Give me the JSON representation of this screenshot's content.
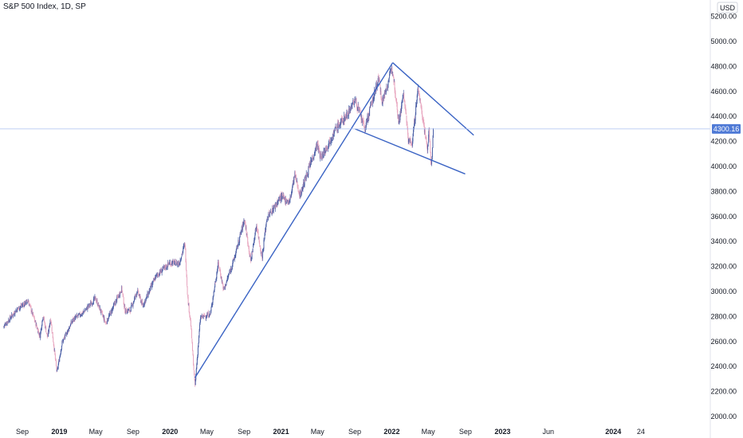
{
  "header": {
    "title": "S&P 500 Index, 1D, SP"
  },
  "currency_label": "USD",
  "price_label": "4300.16",
  "colors": {
    "up": "#4a5fa6",
    "down": "#e8a6bf",
    "trendline": "#3a63c4",
    "price_line": "#a9bff0",
    "price_tag": "#4f7ad6",
    "axis_text": "#131722"
  },
  "chart_data": {
    "type": "candlestick",
    "title": "S&P 500 Index, 1D, SP",
    "ylim": [
      2000,
      5200
    ],
    "y_ticks": [
      "2000.00",
      "2200.00",
      "2400.00",
      "2600.00",
      "2800.00",
      "3000.00",
      "3200.00",
      "3400.00",
      "3600.00",
      "3800.00",
      "4000.00",
      "4200.00",
      "4400.00",
      "4600.00",
      "4800.00",
      "5000.00",
      "5200.00"
    ],
    "x_ticks": [
      {
        "date": "2018-09-01",
        "label": "Sep",
        "bold": false
      },
      {
        "date": "2019-01-01",
        "label": "2019",
        "bold": true
      },
      {
        "date": "2019-05-01",
        "label": "May",
        "bold": false
      },
      {
        "date": "2019-09-01",
        "label": "Sep",
        "bold": false
      },
      {
        "date": "2020-01-01",
        "label": "2020",
        "bold": true
      },
      {
        "date": "2020-05-01",
        "label": "May",
        "bold": false
      },
      {
        "date": "2020-09-01",
        "label": "Sep",
        "bold": false
      },
      {
        "date": "2021-01-01",
        "label": "2021",
        "bold": true
      },
      {
        "date": "2021-05-01",
        "label": "May",
        "bold": false
      },
      {
        "date": "2021-09-01",
        "label": "Sep",
        "bold": false
      },
      {
        "date": "2022-01-01",
        "label": "2022",
        "bold": true
      },
      {
        "date": "2022-05-01",
        "label": "May",
        "bold": false
      },
      {
        "date": "2022-09-01",
        "label": "Sep",
        "bold": false
      },
      {
        "date": "2023-01-01",
        "label": "2023",
        "bold": true
      },
      {
        "date": "2023-06-01",
        "label": "Jun",
        "bold": false
      },
      {
        "date": "2024-01-01",
        "label": "2024",
        "bold": true
      },
      {
        "date": "2024-04-01",
        "label": "24",
        "bold": false
      }
    ],
    "close_series": [
      [
        "2018-07-01",
        2720
      ],
      [
        "2018-08-15",
        2860
      ],
      [
        "2018-09-20",
        2925
      ],
      [
        "2018-10-10",
        2780
      ],
      [
        "2018-10-29",
        2640
      ],
      [
        "2018-11-08",
        2810
      ],
      [
        "2018-11-23",
        2630
      ],
      [
        "2018-12-03",
        2790
      ],
      [
        "2018-12-24",
        2350
      ],
      [
        "2019-01-10",
        2590
      ],
      [
        "2019-02-15",
        2775
      ],
      [
        "2019-03-20",
        2830
      ],
      [
        "2019-04-30",
        2945
      ],
      [
        "2019-06-03",
        2745
      ],
      [
        "2019-07-26",
        3025
      ],
      [
        "2019-08-05",
        2845
      ],
      [
        "2019-08-23",
        2850
      ],
      [
        "2019-09-15",
        3005
      ],
      [
        "2019-10-03",
        2885
      ],
      [
        "2019-11-15",
        3120
      ],
      [
        "2019-12-31",
        3230
      ],
      [
        "2020-01-31",
        3225
      ],
      [
        "2020-02-19",
        3385
      ],
      [
        "2020-02-28",
        2955
      ],
      [
        "2020-03-09",
        2745
      ],
      [
        "2020-03-23",
        2237
      ],
      [
        "2020-04-10",
        2790
      ],
      [
        "2020-05-13",
        2820
      ],
      [
        "2020-06-08",
        3230
      ],
      [
        "2020-06-26",
        3010
      ],
      [
        "2020-08-01",
        3275
      ],
      [
        "2020-09-02",
        3580
      ],
      [
        "2020-09-23",
        3240
      ],
      [
        "2020-10-12",
        3535
      ],
      [
        "2020-10-30",
        3270
      ],
      [
        "2020-11-15",
        3585
      ],
      [
        "2020-12-31",
        3756
      ],
      [
        "2021-01-29",
        3715
      ],
      [
        "2021-02-15",
        3935
      ],
      [
        "2021-03-04",
        3770
      ],
      [
        "2021-04-30",
        4180
      ],
      [
        "2021-05-12",
        4065
      ],
      [
        "2021-06-30",
        4300
      ],
      [
        "2021-08-01",
        4395
      ],
      [
        "2021-09-02",
        4535
      ],
      [
        "2021-10-04",
        4300
      ],
      [
        "2021-11-18",
        4705
      ],
      [
        "2021-12-01",
        4515
      ],
      [
        "2022-01-03",
        4796
      ],
      [
        "2022-01-24",
        4355
      ],
      [
        "2022-02-09",
        4585
      ],
      [
        "2022-02-24",
        4225
      ],
      [
        "2022-03-08",
        4170
      ],
      [
        "2022-03-29",
        4630
      ],
      [
        "2022-04-29",
        4132
      ],
      [
        "2022-05-04",
        4300
      ],
      [
        "2022-05-10",
        4000
      ],
      [
        "2022-05-12",
        4020
      ],
      [
        "2022-05-18",
        4300
      ]
    ],
    "trendlines": [
      {
        "name": "support-line",
        "from": [
          "2020-03-23",
          2310
        ],
        "to": [
          "2022-01-04",
          4830
        ]
      },
      {
        "name": "upper-channel-line",
        "from": [
          "2022-01-04",
          4830
        ],
        "to": [
          "2022-09-28",
          4250
        ]
      },
      {
        "name": "lower-channel-line",
        "from": [
          "2021-09-02",
          4300
        ],
        "to": [
          "2022-08-31",
          3940
        ]
      }
    ],
    "last_price": 4300.16
  }
}
